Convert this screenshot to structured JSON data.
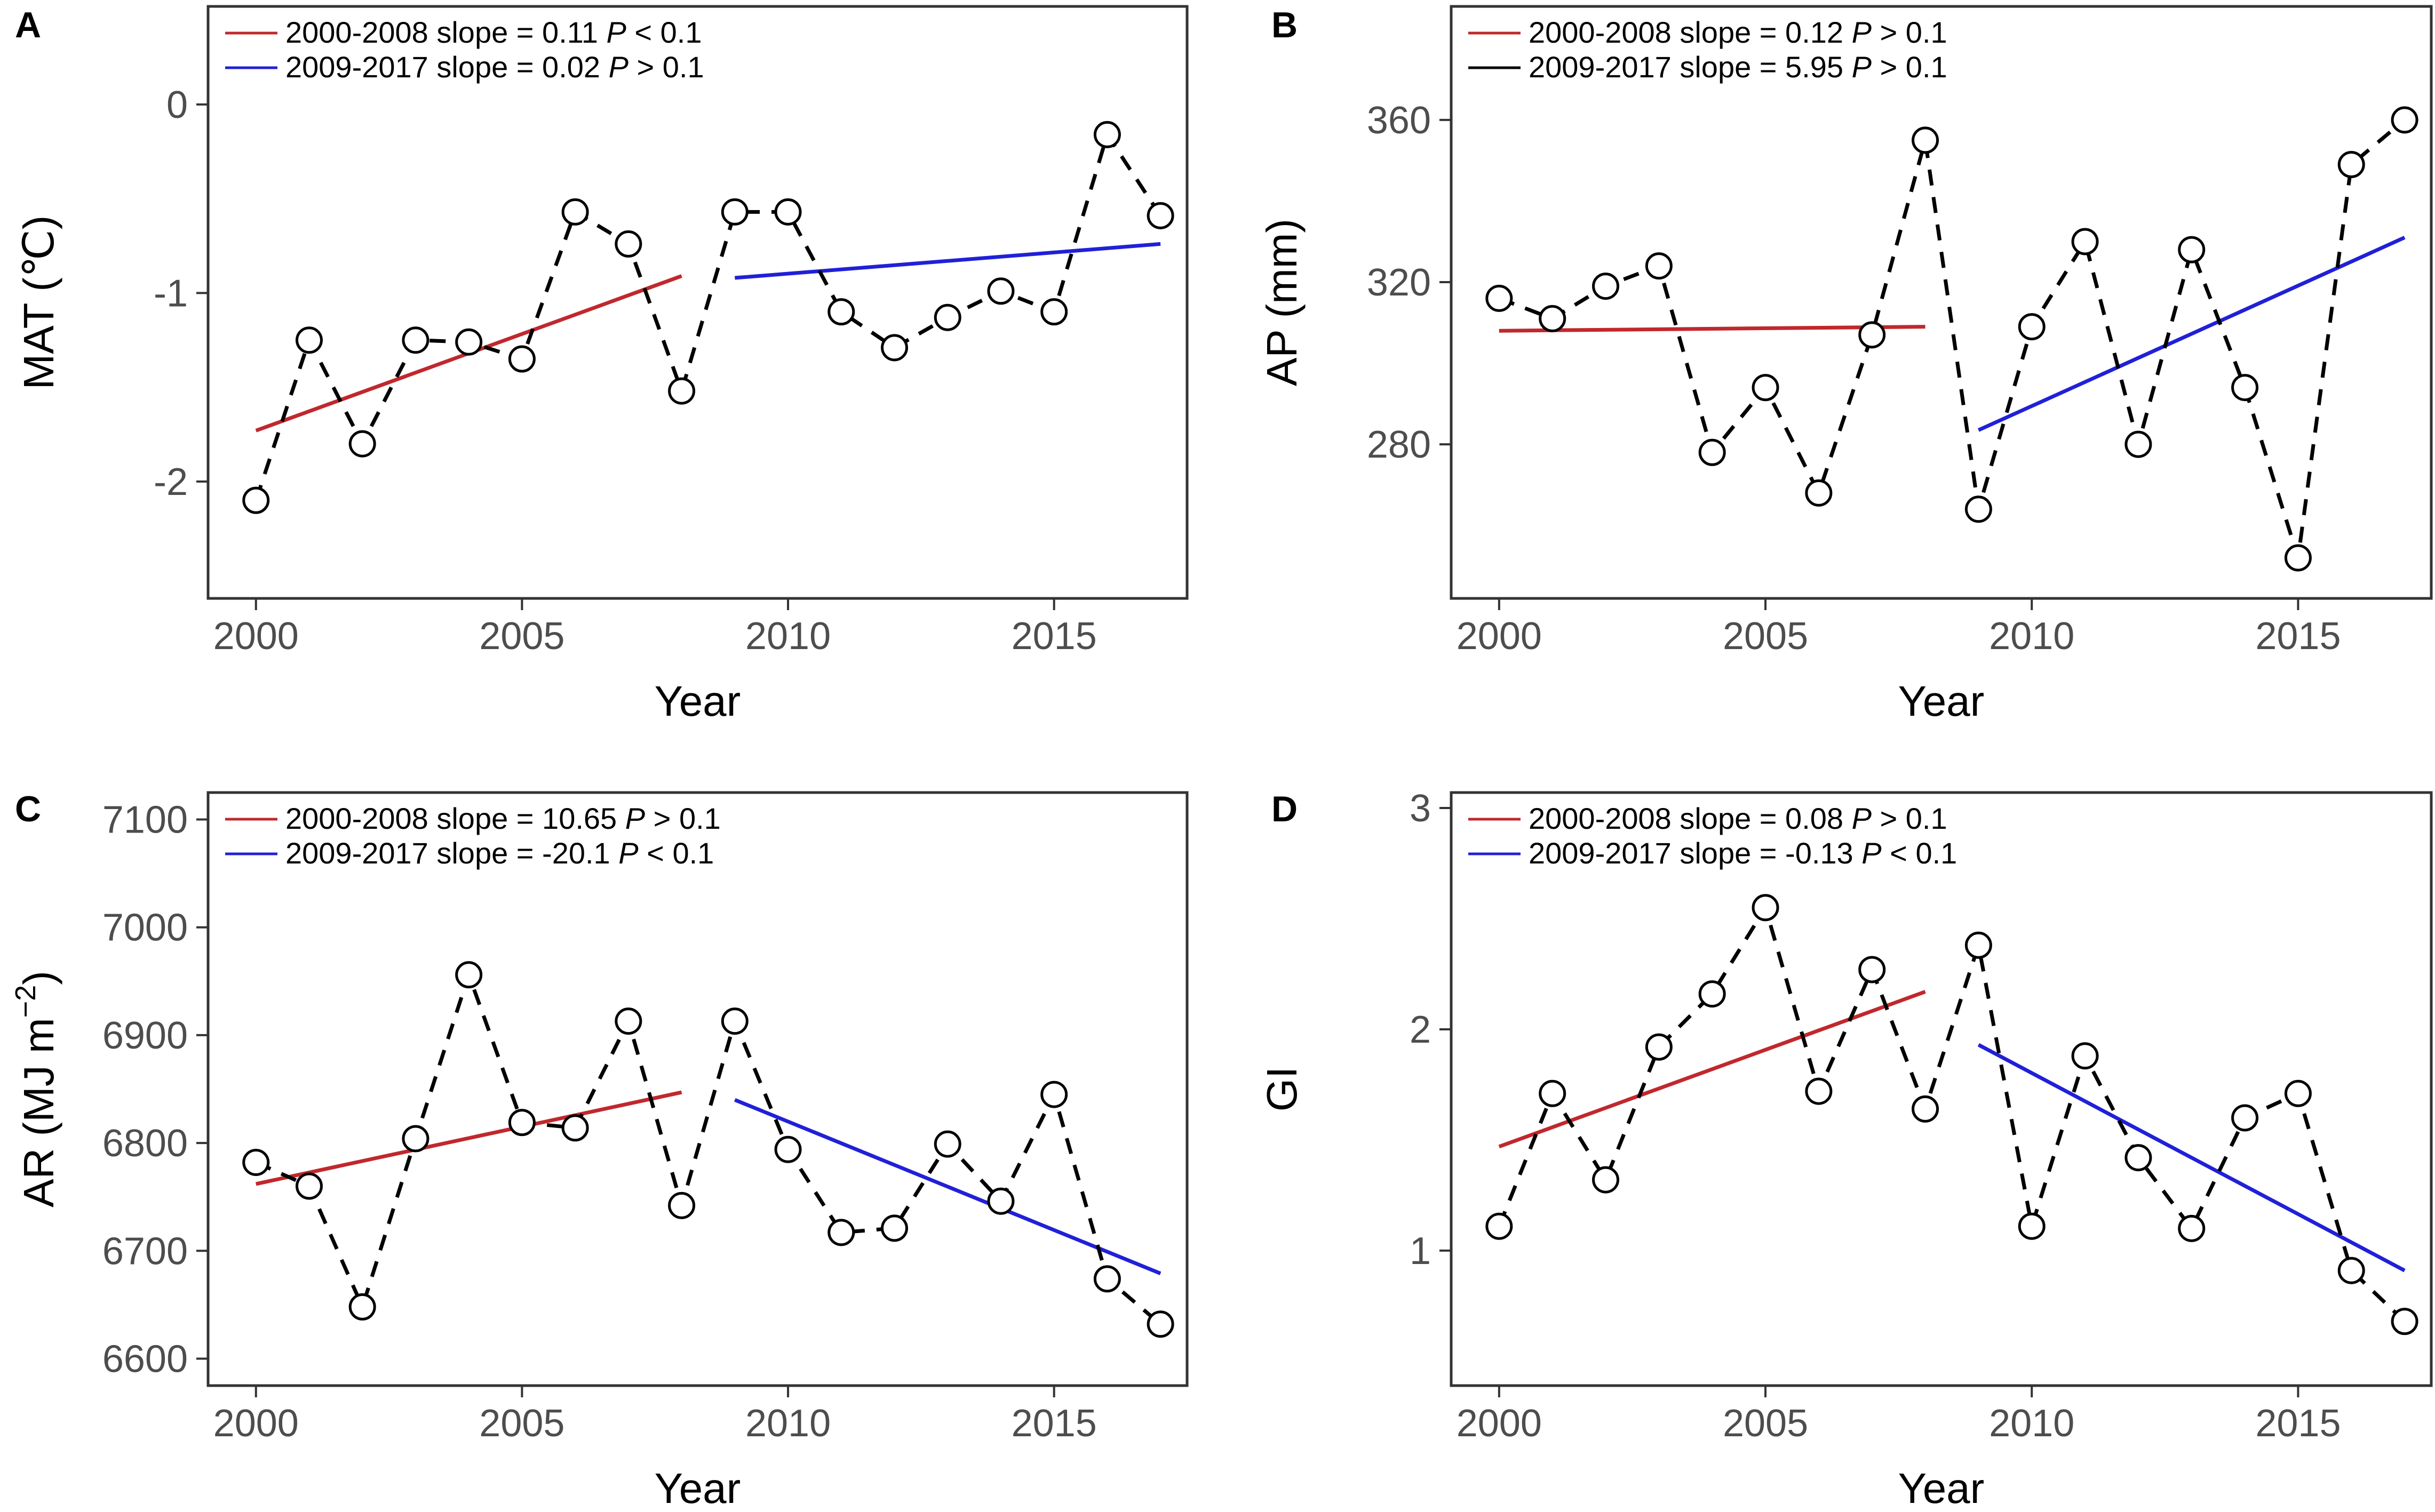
{
  "chart_data": [
    {
      "panel": "A",
      "type": "line",
      "title": "",
      "xlabel": "Year",
      "ylabel": "MAT (℃)",
      "xlim": [
        1999.1,
        2017.5
      ],
      "ylim": [
        -2.62,
        0.52
      ],
      "xticks": [
        2000,
        2005,
        2010,
        2015
      ],
      "xtick_labels": [
        "2000",
        "2005",
        "2010",
        "2015"
      ],
      "yticks": [
        0,
        -1,
        -2
      ],
      "ytick_labels": [
        "0",
        "-1",
        "-2"
      ],
      "x": [
        2000,
        2001,
        2002,
        2003,
        2004,
        2005,
        2006,
        2007,
        2008,
        2009,
        2010,
        2011,
        2012,
        2013,
        2014,
        2015,
        2016,
        2017
      ],
      "values": [
        -2.1,
        -1.25,
        -1.8,
        -1.25,
        -1.26,
        -1.35,
        -0.57,
        -0.74,
        -1.52,
        -0.57,
        -0.57,
        -1.1,
        -1.29,
        -1.13,
        -0.99,
        -1.1,
        -0.16,
        -0.59
      ],
      "trends": [
        {
          "name": "2000-2008",
          "color": "#c0282d",
          "x": [
            2000,
            2008
          ],
          "y": [
            -1.73,
            -0.91
          ]
        },
        {
          "name": "2009-2017",
          "color": "#2020d8",
          "x": [
            2009,
            2017
          ],
          "y": [
            -0.92,
            -0.74
          ]
        }
      ],
      "legend": [
        {
          "label": "2000-2008 slope = 0.11",
          "p_symbol": "P",
          "p_rest": " < 0.1",
          "color": "#c0282d"
        },
        {
          "label": "2009-2017 slope = 0.02",
          "p_symbol": "P",
          "p_rest": " > 0.1",
          "color": "#2020d8"
        }
      ]
    },
    {
      "panel": "B",
      "type": "line",
      "title": "",
      "xlabel": "Year",
      "ylabel": "AP (mm)",
      "xlim": [
        1999.1,
        2017.5
      ],
      "ylim": [
        242,
        388
      ],
      "xticks": [
        2000,
        2005,
        2010,
        2015
      ],
      "xtick_labels": [
        "2000",
        "2005",
        "2010",
        "2015"
      ],
      "yticks": [
        360,
        320,
        280
      ],
      "ytick_labels": [
        "360",
        "320",
        "280"
      ],
      "x": [
        2000,
        2001,
        2002,
        2003,
        2004,
        2005,
        2006,
        2007,
        2008,
        2009,
        2010,
        2011,
        2012,
        2013,
        2014,
        2015,
        2016,
        2017
      ],
      "values": [
        316,
        311,
        319,
        324,
        278,
        294,
        268,
        307,
        355,
        264,
        309,
        330,
        280,
        328,
        294,
        252,
        349,
        360
      ],
      "trends": [
        {
          "name": "2000-2008",
          "color": "#c0282d",
          "x": [
            2000,
            2008
          ],
          "y": [
            308,
            309
          ]
        },
        {
          "name": "2009-2017",
          "color": "#2020d8",
          "x": [
            2009,
            2017
          ],
          "y": [
            283.5,
            331
          ]
        }
      ],
      "legend": [
        {
          "label": "2000-2008 slope = 0.12",
          "p_symbol": "P",
          "p_rest": " > 0.1",
          "color": "#c0282d"
        },
        {
          "label": "2009-2017 slope = 5.95",
          "p_symbol": "P",
          "p_rest": " > 0.1",
          "color": "#000000"
        }
      ]
    },
    {
      "panel": "C",
      "type": "line",
      "title": "",
      "xlabel": "Year",
      "ylabel": "AR (MJ m",
      "ylabel_sup": "−2",
      "ylabel_end": ")",
      "xlim": [
        1999.1,
        2017.5
      ],
      "ylim": [
        6575,
        7125
      ],
      "xticks": [
        2000,
        2005,
        2010,
        2015
      ],
      "xtick_labels": [
        "2000",
        "2005",
        "2010",
        "2015"
      ],
      "yticks": [
        7100,
        7000,
        6900,
        6800,
        6700,
        6600
      ],
      "ytick_labels": [
        "7100",
        "7000",
        "6900",
        "6800",
        "6700",
        "6600"
      ],
      "x": [
        2000,
        2001,
        2002,
        2003,
        2004,
        2005,
        2006,
        2007,
        2008,
        2009,
        2010,
        2011,
        2012,
        2013,
        2014,
        2015,
        2016,
        2017
      ],
      "values": [
        6782,
        6760,
        6648,
        6804,
        6956,
        6819,
        6814,
        6913,
        6742,
        6913,
        6794,
        6717,
        6721,
        6799,
        6746,
        6845,
        6674,
        6632
      ],
      "trends": [
        {
          "name": "2000-2008",
          "color": "#c0282d",
          "x": [
            2000,
            2008
          ],
          "y": [
            6762,
            6847
          ]
        },
        {
          "name": "2009-2017",
          "color": "#2020d8",
          "x": [
            2009,
            2017
          ],
          "y": [
            6840,
            6679
          ]
        }
      ],
      "legend": [
        {
          "label": "2000-2008 slope = 10.65",
          "p_symbol": "P",
          "p_rest": " > 0.1",
          "color": "#c0282d"
        },
        {
          "label": "2009-2017 slope = -20.1",
          "p_symbol": "P",
          "p_rest": " < 0.1",
          "color": "#2020d8"
        }
      ]
    },
    {
      "panel": "D",
      "type": "line",
      "title": "",
      "xlabel": "Year",
      "ylabel": "GI",
      "xlim": [
        1999.1,
        2017.5
      ],
      "ylim": [
        0.39,
        3.07
      ],
      "xticks": [
        2000,
        2005,
        2010,
        2015
      ],
      "xtick_labels": [
        "2000",
        "2005",
        "2010",
        "2015"
      ],
      "yticks": [
        3,
        2,
        1
      ],
      "ytick_labels": [
        "3",
        "2",
        "1"
      ],
      "x": [
        2000,
        2001,
        2002,
        2003,
        2004,
        2005,
        2006,
        2007,
        2008,
        2009,
        2010,
        2011,
        2012,
        2013,
        2014,
        2015,
        2016,
        2017
      ],
      "values": [
        1.11,
        1.71,
        1.32,
        1.92,
        2.16,
        2.55,
        1.72,
        2.27,
        1.64,
        2.38,
        1.11,
        1.88,
        1.42,
        1.1,
        1.6,
        1.71,
        0.91,
        0.68
      ],
      "trends": [
        {
          "name": "2000-2008",
          "color": "#c0282d",
          "x": [
            2000,
            2008
          ],
          "y": [
            1.47,
            2.17
          ]
        },
        {
          "name": "2009-2017",
          "color": "#2020d8",
          "x": [
            2009,
            2017
          ],
          "y": [
            1.93,
            0.91
          ]
        }
      ],
      "legend": [
        {
          "label": "2000-2008 slope = 0.08 ",
          "p_symbol": "P",
          "p_rest": " > 0.1",
          "color": "#c0282d"
        },
        {
          "label": "2009-2017 slope = -0.13 ",
          "p_symbol": "P",
          "p_rest": " < 0.1",
          "color": "#2020d8"
        }
      ]
    }
  ]
}
